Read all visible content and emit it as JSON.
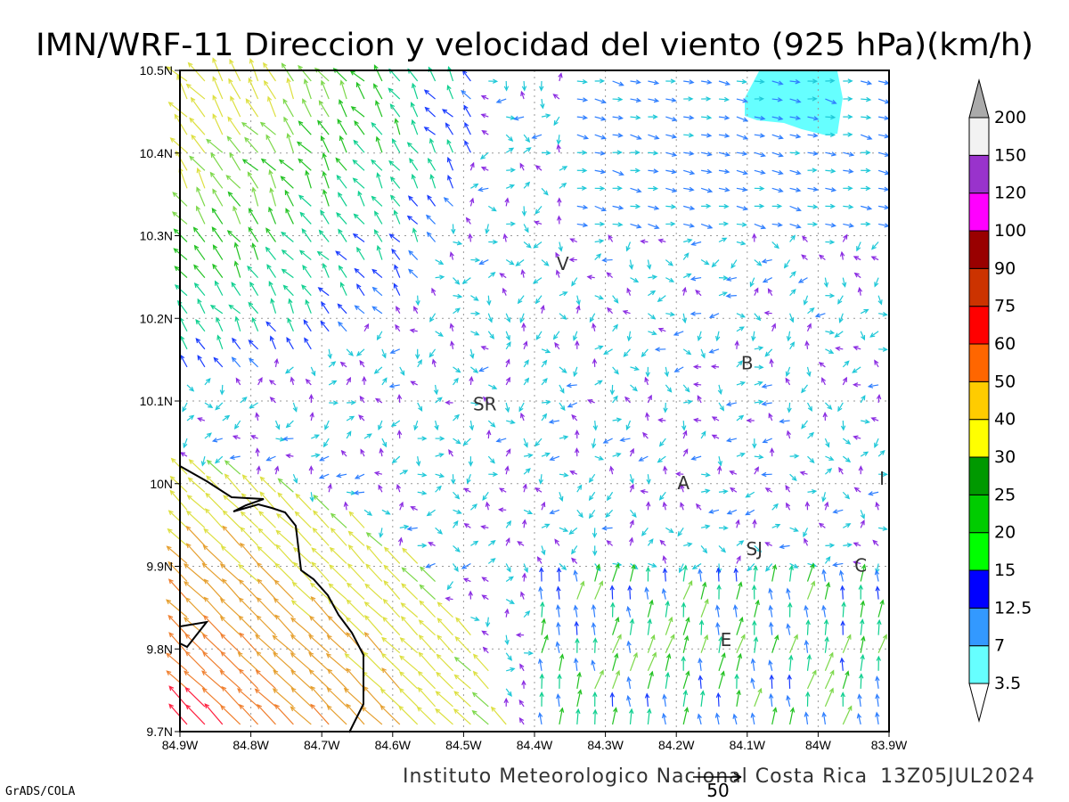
{
  "title": "IMN/WRF-11 Direccion y velocidad del viento (925 hPa)(km/h)",
  "footer": {
    "credit": "Instituto Meteorologico Nacional Costa Rica",
    "timestamp": "13Z05JUL2024",
    "software": "GrADS/COLA",
    "reference_vector_label": "50"
  },
  "axes": {
    "x_ticks": [
      "84.9W",
      "84.8W",
      "84.7W",
      "84.6W",
      "84.5W",
      "84.4W",
      "84.3W",
      "84.2W",
      "84.1W",
      "84W",
      "83.9W"
    ],
    "y_ticks": [
      "10.5N",
      "10.4N",
      "10.3N",
      "10.2N",
      "10.1N",
      "10N",
      "9.9N",
      "9.8N",
      "9.7N"
    ],
    "lon_range": [
      -84.9,
      -83.9
    ],
    "lat_range": [
      9.7,
      10.5
    ],
    "grid": "dotted"
  },
  "legend": {
    "labels": [
      "3.5",
      "7",
      "12.5",
      "15",
      "20",
      "25",
      "30",
      "40",
      "50",
      "60",
      "75",
      "90",
      "100",
      "120",
      "150",
      "200"
    ],
    "colors": [
      "#66ffff",
      "#3399ff",
      "#0000ff",
      "#00ff00",
      "#00cc00",
      "#009900",
      "#ffff00",
      "#ffcc00",
      "#ff6600",
      "#ff0000",
      "#cc3300",
      "#990000",
      "#ff00ff",
      "#9933cc",
      "#f2f2f2"
    ],
    "over_color": "#aaaaaa"
  },
  "place_labels": [
    {
      "text": "V",
      "lon": -84.36,
      "lat": 10.265
    },
    {
      "text": "SR",
      "lon": -84.47,
      "lat": 10.095
    },
    {
      "text": "B",
      "lon": -84.1,
      "lat": 10.145
    },
    {
      "text": "A",
      "lon": -84.19,
      "lat": 10.0
    },
    {
      "text": "I",
      "lon": -83.91,
      "lat": 10.005
    },
    {
      "text": "SJ",
      "lon": -84.09,
      "lat": 9.92
    },
    {
      "text": "C",
      "lon": -83.94,
      "lat": 9.9
    },
    {
      "text": "E",
      "lon": -84.13,
      "lat": 9.81
    }
  ],
  "shaded_areas": [
    {
      "name": "wind-shade-3.5-7",
      "color": "#66ffff"
    }
  ],
  "coastline": "Pacific coast (Golfo de Nicoya)"
}
